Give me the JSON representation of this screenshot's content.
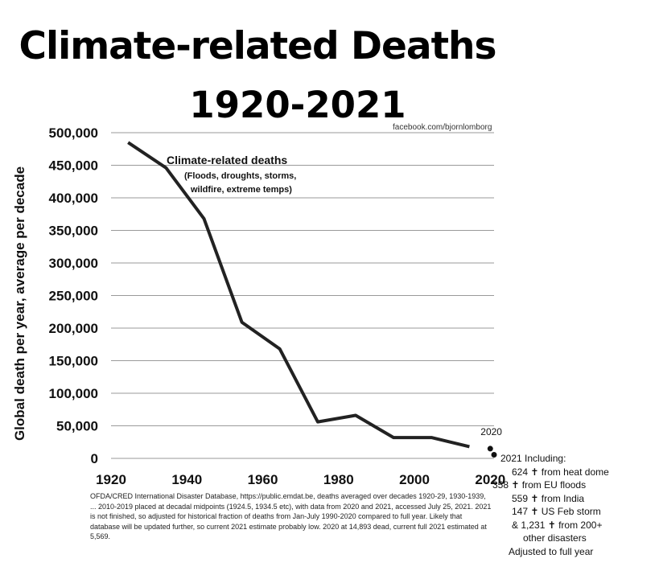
{
  "title_line1": "Climate-related Deaths",
  "title_line2": "1920-2021",
  "credit": "facebook.com/bjornlomborg",
  "footnote": "OFDA/CRED International Disaster Database, https://public.emdat.be, deaths averaged over decades 1920-29, 1930-1939, ... 2010-2019 placed at decadal midpoints (1924.5, 1934.5 etc), with data from 2020 and 2021, accessed July 25, 2021. 2021 is not finished, so adjusted for historical fraction of deaths from Jan-July 1990-2020 compared to full year. Likely that database will be updated further, so current 2021 estimate probably low. 2020 at 14,893 dead, current full 2021 estimated at 5,569.",
  "side_note": {
    "lines": [
      "2021 Including:",
      "624 ✝ from heat dome",
      "358 ✝ from EU floods",
      "559 ✝ from India",
      "147 ✝ US Feb storm",
      "& 1,231 ✝ from 200+",
      "other disasters",
      "Adjusted to full year"
    ]
  },
  "chart_data": {
    "type": "line",
    "ylabel": "Global death per year, average per decade",
    "xlabel": "",
    "ylim": [
      0,
      500000
    ],
    "xlim": [
      1920,
      2021
    ],
    "x_ticks": [
      1920,
      1940,
      1960,
      1980,
      2000,
      2020
    ],
    "y_ticks": [
      0,
      50000,
      100000,
      150000,
      200000,
      250000,
      300000,
      350000,
      400000,
      450000,
      500000
    ],
    "y_tick_labels": [
      "0",
      "50,000",
      "100,000",
      "150,000",
      "200,000",
      "250,000",
      "300,000",
      "350,000",
      "400,000",
      "450,000",
      "500,000"
    ],
    "x_tick_labels": [
      "1920",
      "1940",
      "1960",
      "1980",
      "2000",
      "2020"
    ],
    "grid": "horizontal",
    "series": [
      {
        "name": "Climate-related deaths",
        "subtitle": [
          "(Floods, droughts, storms,",
          "wildfire, extreme temps)"
        ],
        "x": [
          1924.5,
          1934.5,
          1944.5,
          1954.5,
          1964.5,
          1974.5,
          1984.5,
          1994.5,
          2004.5,
          2014.5
        ],
        "y": [
          485000,
          446000,
          368000,
          209000,
          168000,
          56000,
          66000,
          32000,
          32000,
          18000
        ]
      }
    ],
    "points": [
      {
        "label": "2020",
        "x": 2020,
        "y": 14893
      },
      {
        "label": "",
        "x": 2021,
        "y": 5569
      }
    ]
  }
}
